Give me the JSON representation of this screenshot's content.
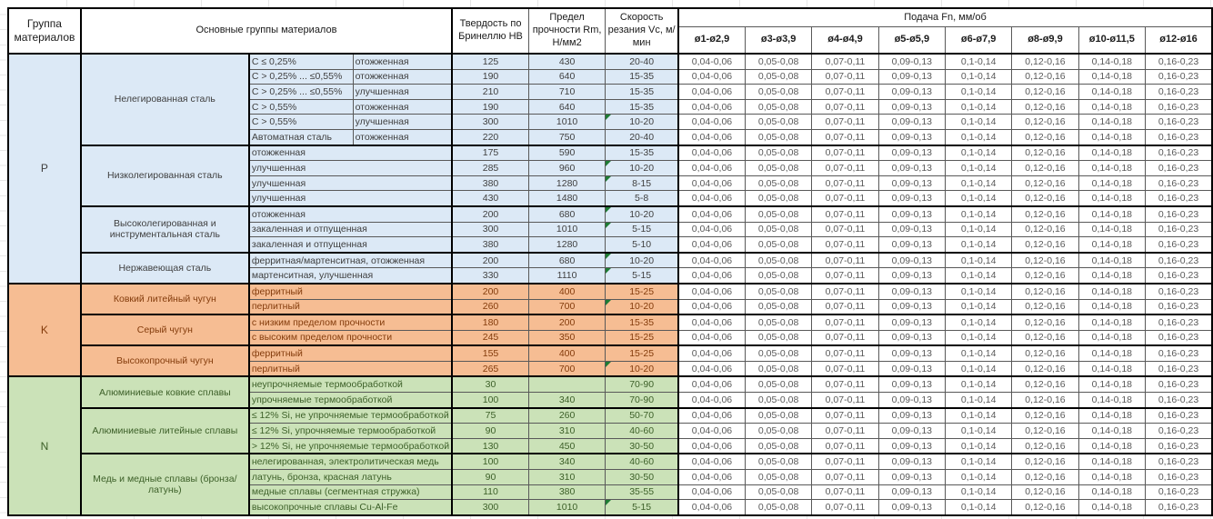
{
  "table": {
    "headers": {
      "group": "Группа материалов",
      "materials": "Основные группы материалов",
      "hardness": "Твердость по Бринеллю HB",
      "strength": "Предел прочности Rm, Н/мм2",
      "speed": "Скорость резания Vc, м/мин",
      "feed": "Подача Fn, мм/об",
      "feed_cols": [
        "ø1-ø2,9",
        "ø3-ø3,9",
        "ø4-ø4,9",
        "ø5-ø5,9",
        "ø6-ø7,9",
        "ø8-ø9,9",
        "ø10-ø11,5",
        "ø12-ø16"
      ]
    },
    "feed_values": [
      "0,04-0,06",
      "0,05-0,08",
      "0,07-0,11",
      "0,09-0,13",
      "0,1-0,14",
      "0,12-0,16",
      "0,14-0,18",
      "0,16-0,23"
    ],
    "colors": {
      "flag_triangle": "#1e7c34",
      "feed_text": "#595959",
      "border_thick": "#000000",
      "border_thin": "#595959"
    },
    "groups": [
      {
        "letter": "P",
        "bg": "#dce9f6",
        "text": "#3f3f3f",
        "families": [
          {
            "name": "Нелегированная сталь",
            "rows": [
              {
                "sub1": "C ≤ 0,25%",
                "sub2": "отожженная",
                "hb": "125",
                "rm": "430",
                "vc": "20-40",
                "flag": false
              },
              {
                "sub1": "C > 0,25% ... ≤0,55%",
                "sub2": "отожженная",
                "hb": "190",
                "rm": "640",
                "vc": "15-35",
                "flag": false
              },
              {
                "sub1": "C > 0,25% ... ≤0,55%",
                "sub2": "улучшенная",
                "hb": "210",
                "rm": "710",
                "vc": "15-35",
                "flag": false
              },
              {
                "sub1": "C > 0,55%",
                "sub2": "отожженная",
                "hb": "190",
                "rm": "640",
                "vc": "15-35",
                "flag": false
              },
              {
                "sub1": "C > 0,55%",
                "sub2": "улучшенная",
                "hb": "300",
                "rm": "1010",
                "vc": "10-20",
                "flag": true
              },
              {
                "sub1": "Автоматная сталь",
                "sub2": "отожженная",
                "hb": "220",
                "rm": "750",
                "vc": "20-40",
                "flag": false
              }
            ]
          },
          {
            "name": "Низколегированная сталь",
            "rows": [
              {
                "sub1": "отожженная",
                "sub2": null,
                "hb": "175",
                "rm": "590",
                "vc": "15-35",
                "flag": false
              },
              {
                "sub1": "улучшенная",
                "sub2": null,
                "hb": "285",
                "rm": "960",
                "vc": "10-20",
                "flag": true
              },
              {
                "sub1": "улучшенная",
                "sub2": null,
                "hb": "380",
                "rm": "1280",
                "vc": "8-15",
                "flag": true
              },
              {
                "sub1": "улучшенная",
                "sub2": null,
                "hb": "430",
                "rm": "1480",
                "vc": "5-8",
                "flag": false
              }
            ]
          },
          {
            "name": "Высоколегированная и инструментальная сталь",
            "rows": [
              {
                "sub1": "отожженная",
                "sub2": null,
                "hb": "200",
                "rm": "680",
                "vc": "10-20",
                "flag": true
              },
              {
                "sub1": "закаленная и отпущенная",
                "sub2": null,
                "hb": "300",
                "rm": "1010",
                "vc": "5-15",
                "flag": true
              },
              {
                "sub1": "закаленная и отпущенная",
                "sub2": null,
                "hb": "380",
                "rm": "1280",
                "vc": "5-10",
                "flag": false
              }
            ]
          },
          {
            "name": "Нержавеющая сталь",
            "rows": [
              {
                "sub1": "ферритная/мартенситная, отожженная",
                "sub2": null,
                "hb": "200",
                "rm": "680",
                "vc": "10-20",
                "flag": true
              },
              {
                "sub1": "мартенситная, улучшенная",
                "sub2": null,
                "hb": "330",
                "rm": "1110",
                "vc": "5-15",
                "flag": true
              }
            ]
          }
        ]
      },
      {
        "letter": "K",
        "bg": "#f6bd93",
        "text": "#843c0c",
        "families": [
          {
            "name": "Ковкий литейный чугун",
            "rows": [
              {
                "sub1": "ферритный",
                "sub2": null,
                "hb": "200",
                "rm": "400",
                "vc": "15-25",
                "flag": false
              },
              {
                "sub1": "перлитный",
                "sub2": null,
                "hb": "260",
                "rm": "700",
                "vc": "10-20",
                "flag": true
              }
            ]
          },
          {
            "name": "Серый чугун",
            "rows": [
              {
                "sub1": "с низким пределом прочности",
                "sub2": null,
                "hb": "180",
                "rm": "200",
                "vc": "15-35",
                "flag": false
              },
              {
                "sub1": "с высоким пределом прочности",
                "sub2": null,
                "hb": "245",
                "rm": "350",
                "vc": "15-25",
                "flag": false
              }
            ]
          },
          {
            "name": "Высокопрочный чугун",
            "rows": [
              {
                "sub1": "ферритный",
                "sub2": null,
                "hb": "155",
                "rm": "400",
                "vc": "15-25",
                "flag": false
              },
              {
                "sub1": "перлитный",
                "sub2": null,
                "hb": "265",
                "rm": "700",
                "vc": "10-20",
                "flag": true
              }
            ]
          }
        ]
      },
      {
        "letter": "N",
        "bg": "#cbe2b8",
        "text": "#3d6029",
        "families": [
          {
            "name": "Алюминиевые ковкие сплавы",
            "rows": [
              {
                "sub1": "неупрочняемые термообработкой",
                "sub2": null,
                "hb": "30",
                "rm": "",
                "vc": "70-90",
                "flag": false
              },
              {
                "sub1": "упрочняемые термообработкой",
                "sub2": null,
                "hb": "100",
                "rm": "340",
                "vc": "70-90",
                "flag": false
              }
            ]
          },
          {
            "name": "Алюминиевые литейные сплавы",
            "rows": [
              {
                "sub1": "≤ 12% Si, не упрочняемые термообработкой",
                "sub2": null,
                "hb": "75",
                "rm": "260",
                "vc": "50-70",
                "flag": false
              },
              {
                "sub1": "≤ 12% Si, упрочняемые термообработкой",
                "sub2": null,
                "hb": "90",
                "rm": "310",
                "vc": "40-60",
                "flag": false
              },
              {
                "sub1": "> 12% Si, не упрочняемые термообработкой",
                "sub2": null,
                "hb": "130",
                "rm": "450",
                "vc": "30-50",
                "flag": false
              }
            ]
          },
          {
            "name": "Медь и медные сплавы (бронза/латунь)",
            "rows": [
              {
                "sub1": "нелегированная, электролитическая медь",
                "sub2": null,
                "hb": "100",
                "rm": "340",
                "vc": "40-60",
                "flag": false
              },
              {
                "sub1": "латунь, бронза, красная латунь",
                "sub2": null,
                "hb": "90",
                "rm": "310",
                "vc": "30-50",
                "flag": false
              },
              {
                "sub1": "медные сплавы (сегментная стружка)",
                "sub2": null,
                "hb": "110",
                "rm": "380",
                "vc": "35-55",
                "flag": false
              },
              {
                "sub1": "высокопрочные сплавы Cu-Al-Fe",
                "sub2": null,
                "hb": "300",
                "rm": "1010",
                "vc": "5-15",
                "flag": true
              }
            ]
          }
        ]
      }
    ]
  }
}
